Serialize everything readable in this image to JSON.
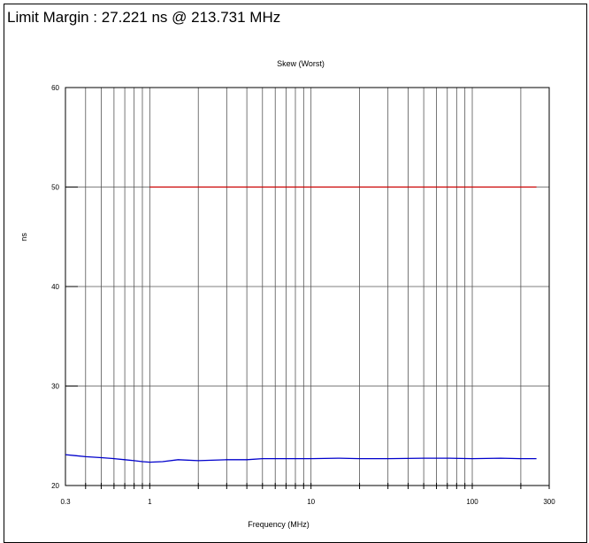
{
  "header": {
    "limit_margin": "Limit Margin : 27.221 ns @ 213.731 MHz"
  },
  "chart_data": {
    "type": "line",
    "title": "Skew (Worst)",
    "xlabel": "Frequency (MHz)",
    "ylabel": "ns",
    "x_scale": "log",
    "xlim": [
      0.3,
      300
    ],
    "ylim": [
      20,
      60
    ],
    "grid": true,
    "x_tick_labels": [
      {
        "value": 0.3,
        "label": "0.3"
      },
      {
        "value": 1,
        "label": "1"
      },
      {
        "value": 10,
        "label": "10"
      },
      {
        "value": 100,
        "label": "100"
      },
      {
        "value": 300,
        "label": "300"
      }
    ],
    "y_tick_labels": [
      {
        "value": 20,
        "label": "20"
      },
      {
        "value": 30,
        "label": "30"
      },
      {
        "value": 40,
        "label": "40"
      },
      {
        "value": 50,
        "label": "50"
      },
      {
        "value": 60,
        "label": "60"
      }
    ],
    "series": [
      {
        "color": "#cc0000",
        "x": [
          1,
          250
        ],
        "y": [
          50,
          50
        ]
      },
      {
        "color": "#0000cc",
        "x": [
          0.3,
          0.35,
          0.4,
          0.5,
          0.6,
          0.7,
          0.8,
          0.9,
          1,
          1.2,
          1.5,
          2,
          3,
          4,
          5,
          7,
          10,
          15,
          20,
          30,
          50,
          70,
          100,
          150,
          200,
          250
        ],
        "y": [
          23.1,
          23.0,
          22.9,
          22.8,
          22.7,
          22.6,
          22.5,
          22.4,
          22.35,
          22.4,
          22.6,
          22.5,
          22.6,
          22.6,
          22.7,
          22.7,
          22.7,
          22.75,
          22.7,
          22.7,
          22.75,
          22.75,
          22.7,
          22.75,
          22.7,
          22.7
        ]
      }
    ]
  }
}
